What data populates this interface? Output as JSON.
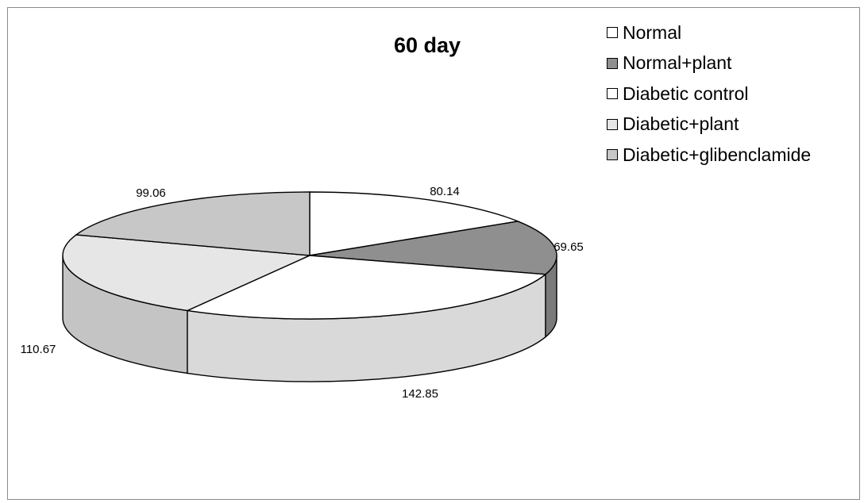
{
  "chart_data": {
    "type": "pie",
    "title": "60 day",
    "categories": [
      "Normal",
      "Normal+plant",
      "Diabetic control",
      "Diabetic+plant",
      "Diabetic+glibenclamide"
    ],
    "values": [
      80.14,
      69.65,
      142.85,
      110.67,
      99.06
    ],
    "value_labels": [
      "80.14",
      "69.65",
      "142.85",
      "110.67",
      "99.06"
    ],
    "colors": [
      "#ffffff",
      "#8f8f8f",
      "#ffffff",
      "#e6e6e6",
      "#c7c7c7"
    ],
    "style": "3d",
    "legend_position": "top-right"
  }
}
